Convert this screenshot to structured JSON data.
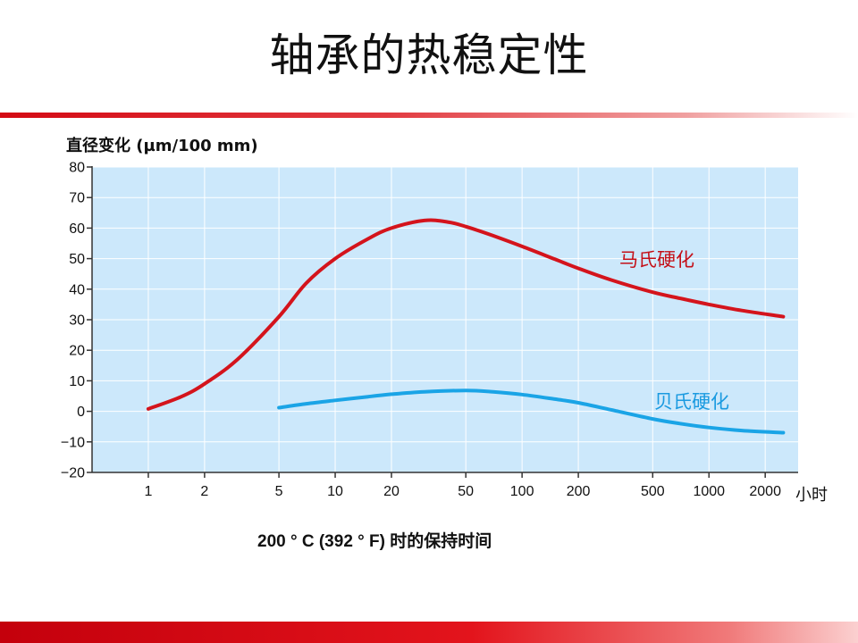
{
  "slide": {
    "title": "轴承的热稳定性",
    "caption": "200 ° C (392 ° F) 时的保持时间"
  },
  "chart_data": {
    "type": "line",
    "ylabel": "直径变化 (µm/100 mm)",
    "xunit": "小时",
    "xscale": "log",
    "xlim": [
      0.5,
      3000
    ],
    "ylim": [
      -20,
      80
    ],
    "yticks": [
      80,
      70,
      60,
      50,
      40,
      30,
      20,
      10,
      0,
      -10,
      -20
    ],
    "ytick_labels": [
      "80",
      "70",
      "60",
      "50",
      "40",
      "30",
      "20",
      "10",
      "0",
      "−10",
      "−20"
    ],
    "xticks": [
      1,
      2,
      5,
      10,
      20,
      50,
      100,
      200,
      500,
      1000,
      2000
    ],
    "xtick_labels": [
      "1",
      "2",
      "5",
      "10",
      "20",
      "50",
      "100",
      "200",
      "500",
      "1000",
      "2000"
    ],
    "grid": true,
    "background": "#cce8fb",
    "series": [
      {
        "name": "马氏硬化",
        "color": "#d4141c",
        "label_color": "#c41018",
        "x": [
          1,
          1.5,
          2,
          3,
          5,
          7,
          10,
          15,
          20,
          30,
          40,
          50,
          70,
          100,
          150,
          200,
          300,
          500,
          700,
          1000,
          1500,
          2500
        ],
        "y": [
          0.8,
          4.8,
          9,
          17,
          31,
          42,
          50,
          56.5,
          60,
          62.5,
          62,
          60.5,
          57.5,
          54,
          49.8,
          46.8,
          43,
          39,
          37,
          35,
          33,
          31
        ]
      },
      {
        "name": "贝氏硬化",
        "color": "#1aa4e6",
        "label_color": "#1a9ae0",
        "x": [
          5,
          7,
          10,
          15,
          20,
          30,
          50,
          70,
          100,
          150,
          200,
          300,
          500,
          700,
          1000,
          1500,
          2500
        ],
        "y": [
          1.2,
          2.5,
          3.6,
          4.8,
          5.6,
          6.4,
          6.8,
          6.4,
          5.5,
          4,
          2.8,
          0.5,
          -2.5,
          -4,
          -5.3,
          -6.3,
          -7
        ]
      }
    ]
  }
}
